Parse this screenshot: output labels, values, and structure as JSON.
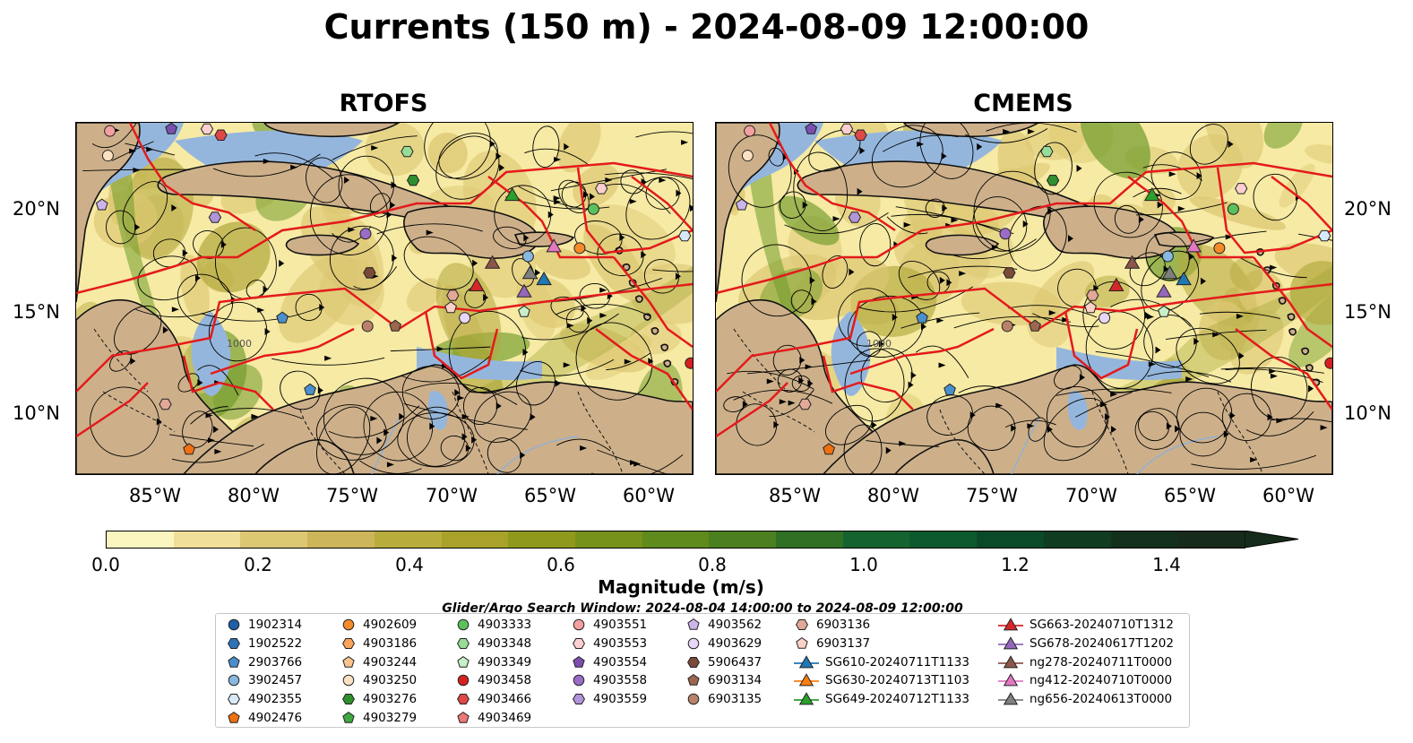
{
  "title": "Currents (150 m) - 2024-08-09 12:00:00",
  "panels": {
    "left_title": "RTOFS",
    "right_title": "CMEMS"
  },
  "map": {
    "lat_labels": [
      "20°N",
      "15°N",
      "10°N"
    ],
    "lon_labels": [
      "85°W",
      "80°W",
      "75°W",
      "70°W",
      "65°W",
      "60°W"
    ],
    "isobath_label": "1000",
    "colors": {
      "ocean_light": "#f6eaa4",
      "ocean_mid": "#dcc772",
      "ocean_strong": "#6f9a2a",
      "land": "#cdb08a",
      "shelf": "#95b6dc",
      "track": "#e41a1c",
      "streamline": "#000000"
    }
  },
  "colorbar": {
    "label": "Magnitude (m/s)",
    "ticks": [
      "0.0",
      "0.2",
      "0.4",
      "0.6",
      "0.8",
      "1.0",
      "1.2",
      "1.4"
    ],
    "colors": [
      "#fbf5bf",
      "#f0df98",
      "#dcc773",
      "#cdb55a",
      "#b8ac3c",
      "#a8a22a",
      "#8f9a1c",
      "#77921a",
      "#5f8a1c",
      "#4b7f20",
      "#2f7025",
      "#15632e",
      "#0c5a2e",
      "#0b4a28",
      "#103c22",
      "#13301c",
      "#172b1a"
    ]
  },
  "search_window": "Glider/Argo Search Window: 2024-08-04 14:00:00 to 2024-08-09 12:00:00",
  "legend": {
    "columns": [
      [
        {
          "label": "1902314",
          "marker": "circle",
          "color": "#1f5fa8"
        },
        {
          "label": "1902522",
          "marker": "hexagon",
          "color": "#2e73b8"
        },
        {
          "label": "2903766",
          "marker": "pentagon",
          "color": "#4a8fcc"
        },
        {
          "label": "3902457",
          "marker": "circle",
          "color": "#86b8e0"
        },
        {
          "label": "4902355",
          "marker": "hexagon",
          "color": "#d7e9f7"
        },
        {
          "label": "4902476",
          "marker": "pentagon",
          "color": "#f07010"
        }
      ],
      [
        {
          "label": "4902609",
          "marker": "circle",
          "color": "#f58a2a"
        },
        {
          "label": "4903186",
          "marker": "hexagon",
          "color": "#f9a45a"
        },
        {
          "label": "4903244",
          "marker": "pentagon",
          "color": "#fbc48e"
        },
        {
          "label": "4903250",
          "marker": "circle",
          "color": "#fde0c2"
        },
        {
          "label": "4903276",
          "marker": "hexagon",
          "color": "#2f8f2f"
        },
        {
          "label": "4903279",
          "marker": "pentagon",
          "color": "#3fa83f"
        }
      ],
      [
        {
          "label": "4903333",
          "marker": "circle",
          "color": "#5cc05c"
        },
        {
          "label": "4903348",
          "marker": "hexagon",
          "color": "#98dc98"
        },
        {
          "label": "4903349",
          "marker": "pentagon",
          "color": "#c8f0c8"
        },
        {
          "label": "4903458",
          "marker": "circle",
          "color": "#d62020"
        },
        {
          "label": "4903466",
          "marker": "hexagon",
          "color": "#e04848"
        },
        {
          "label": "4903469",
          "marker": "pentagon",
          "color": "#ec7878"
        }
      ],
      [
        {
          "label": "4903551",
          "marker": "circle",
          "color": "#f4a0a0"
        },
        {
          "label": "4903553",
          "marker": "hexagon",
          "color": "#fcd0d0"
        },
        {
          "label": "4903554",
          "marker": "pentagon",
          "color": "#7b4fb0"
        },
        {
          "label": "4903558",
          "marker": "circle",
          "color": "#9a6cc8"
        },
        {
          "label": "4903559",
          "marker": "hexagon",
          "color": "#b294d8"
        }
      ],
      [
        {
          "label": "4903562",
          "marker": "pentagon",
          "color": "#cdb4ea"
        },
        {
          "label": "4903629",
          "marker": "circle",
          "color": "#e8d6f6"
        },
        {
          "label": "5906437",
          "marker": "hexagon",
          "color": "#7a4a38"
        },
        {
          "label": "6903134",
          "marker": "pentagon",
          "color": "#9c6650"
        },
        {
          "label": "6903135",
          "marker": "circle",
          "color": "#b8826a"
        }
      ],
      [
        {
          "label": "6903136",
          "marker": "hexagon",
          "color": "#e2a898"
        },
        {
          "label": "6903137",
          "marker": "pentagon",
          "color": "#fbd2c8"
        },
        {
          "label": "SG610-20240711T1133",
          "marker": "triangle",
          "color": "#1f77b4"
        },
        {
          "label": "SG630-20240713T1103",
          "marker": "triangle",
          "color": "#ff7f0e"
        },
        {
          "label": "SG649-20240712T1133",
          "marker": "triangle",
          "color": "#2ca02c"
        }
      ],
      [
        {
          "label": "SG663-20240710T1312",
          "marker": "triangle",
          "color": "#d62728"
        },
        {
          "label": "SG678-20240617T1202",
          "marker": "triangle",
          "color": "#9467bd"
        },
        {
          "label": "ng278-20240711T0000",
          "marker": "triangle",
          "color": "#8c564b"
        },
        {
          "label": "ng412-20240710T0000",
          "marker": "triangle",
          "color": "#e377c2"
        },
        {
          "label": "ng656-20240613T0000",
          "marker": "triangle",
          "color": "#7f7f7f"
        }
      ]
    ]
  },
  "observations": {
    "argo_floats": [
      {
        "id": "4903551",
        "lon": -87.3,
        "lat": 23.8
      },
      {
        "id": "4903250",
        "lon": -87.4,
        "lat": 22.6
      },
      {
        "id": "4903554",
        "lon": -84.2,
        "lat": 23.9
      },
      {
        "id": "4903553",
        "lon": -82.4,
        "lat": 23.9
      },
      {
        "id": "4903466",
        "lon": -81.7,
        "lat": 23.6
      },
      {
        "id": "4903562",
        "lon": -87.7,
        "lat": 20.2
      },
      {
        "id": "4903559",
        "lon": -82.0,
        "lat": 19.6
      },
      {
        "id": "4903348",
        "lon": -72.3,
        "lat": 22.8
      },
      {
        "id": "4903276",
        "lon": -72.0,
        "lat": 21.4
      },
      {
        "id": "4903558",
        "lon": -74.4,
        "lat": 18.8
      },
      {
        "id": "5906437",
        "lon": -74.2,
        "lat": 16.9
      },
      {
        "id": "6903136",
        "lon": -70.0,
        "lat": 15.8
      },
      {
        "id": "6903137",
        "lon": -70.1,
        "lat": 15.2
      },
      {
        "id": "4903629",
        "lon": -69.4,
        "lat": 14.7
      },
      {
        "id": "6903135",
        "lon": -74.3,
        "lat": 14.3
      },
      {
        "id": "6903134",
        "lon": -72.9,
        "lat": 14.3
      },
      {
        "id": "2903766",
        "lon": -78.6,
        "lat": 14.7
      },
      {
        "id": "2903766",
        "lon": -77.2,
        "lat": 11.2
      },
      {
        "id": "4903349",
        "lon": -66.4,
        "lat": 15.0
      },
      {
        "id": "3902457",
        "lon": -66.2,
        "lat": 17.7
      },
      {
        "id": "4902609",
        "lon": -63.6,
        "lat": 18.1
      },
      {
        "id": "4903333",
        "lon": -62.9,
        "lat": 20.0
      },
      {
        "id": "4903553",
        "lon": -62.5,
        "lat": 21.0
      },
      {
        "id": "4902355",
        "lon": -58.3,
        "lat": 18.7
      },
      {
        "id": "4903458",
        "lon": -58.0,
        "lat": 12.5
      },
      {
        "id": "6903136",
        "lon": -84.5,
        "lat": 10.5
      },
      {
        "id": "4902476",
        "lon": -83.3,
        "lat": 8.3
      }
    ],
    "gliders": [
      {
        "id": "SG649-20240712T1133",
        "lon": -67.0,
        "lat": 20.7
      },
      {
        "id": "ng278-20240711T0000",
        "lon": -68.0,
        "lat": 17.4
      },
      {
        "id": "SG663-20240710T1312",
        "lon": -68.8,
        "lat": 16.3
      },
      {
        "id": "ng412-20240710T0000",
        "lon": -64.9,
        "lat": 18.2
      },
      {
        "id": "ng656-20240613T0000",
        "lon": -66.1,
        "lat": 16.9
      },
      {
        "id": "SG610-20240711T1133",
        "lon": -65.4,
        "lat": 16.6
      },
      {
        "id": "SG678-20240617T1202",
        "lon": -66.4,
        "lat": 16.0
      }
    ]
  }
}
